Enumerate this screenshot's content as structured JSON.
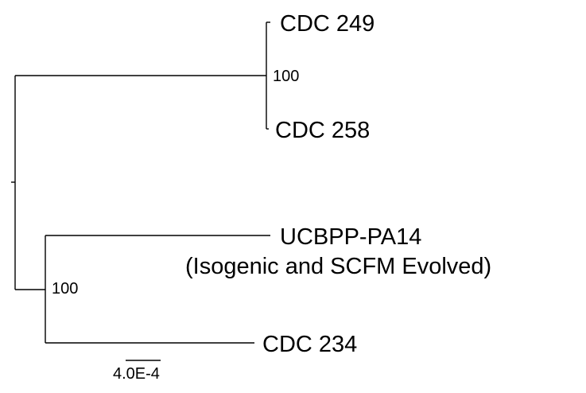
{
  "tree": {
    "leaves": {
      "cdc249": "CDC 249",
      "cdc258": "CDC 258",
      "pa14_line1": "UCBPP-PA14",
      "pa14_line2": "(Isogenic and SCFM Evolved)",
      "cdc234": "CDC 234"
    },
    "bootstrap": {
      "upper_clade": "100",
      "lower_clade": "100"
    },
    "scale_bar": {
      "label": "4.0E-4"
    }
  },
  "colors": {
    "line": "#000000",
    "text": "#000000",
    "background": "#ffffff"
  }
}
